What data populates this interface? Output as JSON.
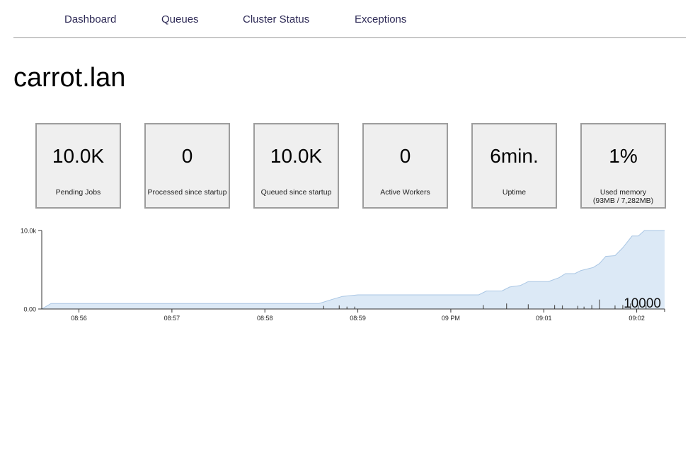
{
  "nav": {
    "items": [
      {
        "label": "Dashboard"
      },
      {
        "label": "Queues"
      },
      {
        "label": "Cluster Status"
      },
      {
        "label": "Exceptions"
      }
    ]
  },
  "host": {
    "title": "carrot.lan"
  },
  "stats": [
    {
      "value": "10.0K",
      "label": "Pending Jobs"
    },
    {
      "value": "0",
      "label": "Processed since startup"
    },
    {
      "value": "10.0K",
      "label": "Queued since startup"
    },
    {
      "value": "0",
      "label": "Active Workers"
    },
    {
      "value": "6min.",
      "label": "Uptime"
    },
    {
      "value": "1%",
      "label": "Used memory",
      "sub": "(93MB / 7,282MB)"
    }
  ],
  "colors": {
    "nav_text": "#2e2a56",
    "area_fill": "#dce9f6",
    "area_line": "#a9c6e4",
    "box_bg": "#efefef",
    "box_border": "#9d9d9d"
  },
  "chart_data": {
    "type": "area",
    "xlabel": "",
    "ylabel": "",
    "ylim": [
      0,
      10000
    ],
    "y_tick_labels": [
      "0.00",
      "10.0k"
    ],
    "x_range": [
      "08:55:36",
      "09:02:18"
    ],
    "x_ticks": [
      {
        "time": "08:56:00",
        "label": "08:56"
      },
      {
        "time": "08:57:00",
        "label": "08:57"
      },
      {
        "time": "08:58:00",
        "label": "08:58"
      },
      {
        "time": "08:59:00",
        "label": "08:59"
      },
      {
        "time": "09:00:00",
        "label": "09 PM"
      },
      {
        "time": "09:01:00",
        "label": "09:01"
      },
      {
        "time": "09:02:00",
        "label": "09:02"
      }
    ],
    "series": [
      {
        "points": [
          [
            "08:55:36",
            0
          ],
          [
            "08:55:42",
            700
          ],
          [
            "08:58:35",
            700
          ],
          [
            "08:58:43",
            1200
          ],
          [
            "08:58:50",
            1600
          ],
          [
            "08:59:00",
            1800
          ],
          [
            "09:00:18",
            1800
          ],
          [
            "09:00:23",
            2300
          ],
          [
            "09:00:33",
            2300
          ],
          [
            "09:00:38",
            2800
          ],
          [
            "09:00:45",
            3000
          ],
          [
            "09:00:50",
            3500
          ],
          [
            "09:01:03",
            3500
          ],
          [
            "09:01:10",
            4000
          ],
          [
            "09:01:14",
            4500
          ],
          [
            "09:01:20",
            4500
          ],
          [
            "09:01:24",
            4900
          ],
          [
            "09:01:32",
            5300
          ],
          [
            "09:01:36",
            5800
          ],
          [
            "09:01:40",
            6700
          ],
          [
            "09:01:46",
            6800
          ],
          [
            "09:01:51",
            7800
          ],
          [
            "09:01:57",
            9300
          ],
          [
            "09:02:01",
            9300
          ],
          [
            "09:02:05",
            10000
          ],
          [
            "09:02:18",
            10000
          ]
        ]
      }
    ],
    "spikes": [
      {
        "time": "08:58:38",
        "value": 400
      },
      {
        "time": "08:58:48",
        "value": 450
      },
      {
        "time": "08:58:53",
        "value": 300
      },
      {
        "time": "08:58:58",
        "value": 300
      },
      {
        "time": "09:00:21",
        "value": 500
      },
      {
        "time": "09:00:36",
        "value": 700
      },
      {
        "time": "09:00:50",
        "value": 600
      },
      {
        "time": "09:01:07",
        "value": 500
      },
      {
        "time": "09:01:12",
        "value": 450
      },
      {
        "time": "09:01:22",
        "value": 400
      },
      {
        "time": "09:01:26",
        "value": 300
      },
      {
        "time": "09:01:31",
        "value": 500
      },
      {
        "time": "09:01:36",
        "value": 1200
      },
      {
        "time": "09:01:46",
        "value": 450
      },
      {
        "time": "09:01:51",
        "value": 500
      },
      {
        "time": "09:01:56",
        "value": 700
      },
      {
        "time": "09:02:01",
        "value": 450
      },
      {
        "time": "09:02:06",
        "value": 500
      }
    ],
    "current_value_label": "10000"
  }
}
